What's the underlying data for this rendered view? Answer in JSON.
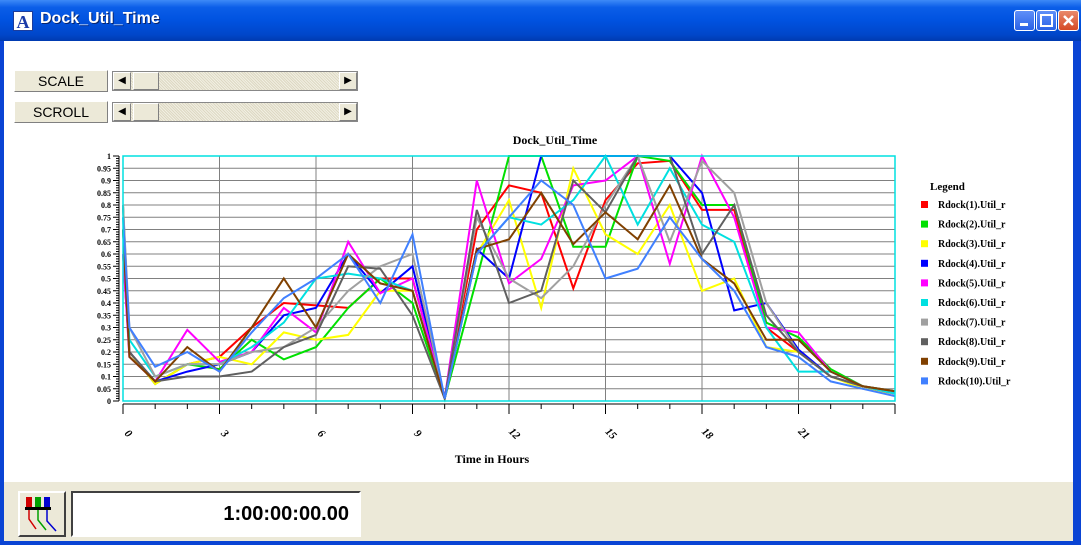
{
  "window": {
    "title": "Dock_Util_Time",
    "icon_letter": "A"
  },
  "controls": {
    "scale_label": "SCALE",
    "scroll_label": "SCROLL"
  },
  "status": {
    "clock": "1:00:00:00.00"
  },
  "chart_data": {
    "type": "line",
    "title": "Dock_Util_Time",
    "xlabel": "Time in Hours",
    "ylabel": "",
    "xlim": [
      0,
      24
    ],
    "ylim": [
      0,
      1
    ],
    "x_ticks": [
      0,
      3,
      6,
      9,
      12,
      15,
      18,
      21
    ],
    "y_ticks": [
      0,
      0.05,
      0.1,
      0.15,
      0.2,
      0.25,
      0.3,
      0.35,
      0.4,
      0.45,
      0.5,
      0.55,
      0.6,
      0.65,
      0.7,
      0.75,
      0.8,
      0.85,
      0.9,
      0.95,
      1
    ],
    "y_tick_labels": [
      "0",
      "0.05",
      "0.1",
      "0.15",
      "0.2",
      "0.25",
      "0.3",
      "0.35",
      "0.4",
      "0.45",
      "0.5",
      "0.55",
      "0.6",
      "0.65",
      "0.7",
      "0.75",
      "0.8",
      "0.85",
      "0.9",
      "0.95",
      "1"
    ],
    "grid": true,
    "legend_title": "Legend",
    "legend_position": "right",
    "x": [
      0,
      0.2,
      1,
      2,
      3,
      4,
      5,
      6,
      7,
      8,
      9,
      10,
      11,
      12,
      13,
      14,
      15,
      16,
      17,
      18,
      19,
      20,
      21,
      22,
      23,
      24
    ],
    "series": [
      {
        "name": "Rdock(1).Util_r",
        "color": "#ff0000",
        "values": [
          0.8,
          0.2,
          0.07,
          0.15,
          0.18,
          0.3,
          0.4,
          0.39,
          0.38,
          0.5,
          0.5,
          0.01,
          0.7,
          0.88,
          0.85,
          0.46,
          0.82,
          0.97,
          0.98,
          0.78,
          0.78,
          0.3,
          0.2,
          0.1,
          0.06,
          0.03
        ]
      },
      {
        "name": "Rdock(2).Util_r",
        "color": "#00e000",
        "values": [
          0.7,
          0.2,
          0.07,
          0.15,
          0.13,
          0.25,
          0.17,
          0.22,
          0.38,
          0.5,
          0.4,
          0.01,
          0.5,
          1.0,
          1.0,
          0.63,
          0.63,
          1.0,
          0.98,
          0.8,
          0.8,
          0.32,
          0.26,
          0.13,
          0.06,
          0.04
        ]
      },
      {
        "name": "Rdock(3).Util_r",
        "color": "#ffff00",
        "values": [
          0.6,
          0.2,
          0.07,
          0.15,
          0.18,
          0.15,
          0.28,
          0.25,
          0.27,
          0.45,
          0.45,
          0.01,
          0.6,
          0.82,
          0.38,
          0.95,
          0.68,
          0.6,
          0.8,
          0.45,
          0.5,
          0.22,
          0.2,
          0.1,
          0.05,
          0.03
        ]
      },
      {
        "name": "Rdock(4).Util_r",
        "color": "#0000ff",
        "values": [
          0.6,
          0.2,
          0.08,
          0.12,
          0.15,
          0.2,
          0.35,
          0.38,
          0.6,
          0.44,
          0.55,
          0.01,
          0.62,
          0.5,
          1.0,
          1.0,
          1.0,
          1.0,
          1.0,
          0.85,
          0.37,
          0.4,
          0.21,
          0.1,
          0.06,
          0.03
        ]
      },
      {
        "name": "Rdock(5).Util_r",
        "color": "#ff00ff",
        "values": [
          0.6,
          0.18,
          0.08,
          0.29,
          0.16,
          0.2,
          0.38,
          0.28,
          0.65,
          0.44,
          0.5,
          0.01,
          0.9,
          0.48,
          0.58,
          0.88,
          0.9,
          1.0,
          0.56,
          1.0,
          0.75,
          0.3,
          0.28,
          0.12,
          0.06,
          0.03
        ]
      },
      {
        "name": "Rdock(6).Util_r",
        "color": "#00e0e0",
        "values": [
          0.8,
          0.25,
          0.1,
          0.15,
          0.15,
          0.22,
          0.32,
          0.5,
          0.52,
          0.5,
          0.45,
          0.01,
          0.6,
          0.75,
          0.72,
          0.82,
          1.0,
          0.72,
          0.95,
          0.72,
          0.65,
          0.3,
          0.12,
          0.12,
          0.06,
          0.03
        ]
      },
      {
        "name": "Rdock(7).Util_r",
        "color": "#a0a0a0",
        "values": [
          0.8,
          0.3,
          0.1,
          0.15,
          0.15,
          0.2,
          0.22,
          0.3,
          0.45,
          0.55,
          0.6,
          0.01,
          0.75,
          0.5,
          0.42,
          0.55,
          0.8,
          1.0,
          0.65,
          0.98,
          0.85,
          0.4,
          0.2,
          0.1,
          0.06,
          0.04
        ]
      },
      {
        "name": "Rdock(8).Util_r",
        "color": "#606060",
        "values": [
          0.7,
          0.2,
          0.08,
          0.1,
          0.1,
          0.12,
          0.22,
          0.27,
          0.55,
          0.54,
          0.35,
          0.01,
          0.78,
          0.4,
          0.45,
          0.9,
          0.77,
          1.0,
          1.0,
          0.6,
          0.8,
          0.35,
          0.2,
          0.1,
          0.06,
          0.04
        ]
      },
      {
        "name": "Rdock(9).Util_r",
        "color": "#804000",
        "values": [
          0.7,
          0.18,
          0.08,
          0.22,
          0.12,
          0.3,
          0.5,
          0.3,
          0.6,
          0.48,
          0.45,
          0.01,
          0.62,
          0.66,
          0.85,
          0.64,
          0.77,
          0.66,
          0.88,
          0.58,
          0.48,
          0.25,
          0.25,
          0.12,
          0.06,
          0.04
        ]
      },
      {
        "name": "Rdock(10).Util_r",
        "color": "#4080ff",
        "values": [
          0.75,
          0.3,
          0.14,
          0.2,
          0.12,
          0.28,
          0.42,
          0.5,
          0.6,
          0.4,
          0.68,
          0.01,
          0.6,
          0.75,
          0.9,
          0.8,
          0.5,
          0.54,
          0.75,
          0.58,
          0.45,
          0.22,
          0.18,
          0.08,
          0.05,
          0.02
        ]
      }
    ]
  }
}
